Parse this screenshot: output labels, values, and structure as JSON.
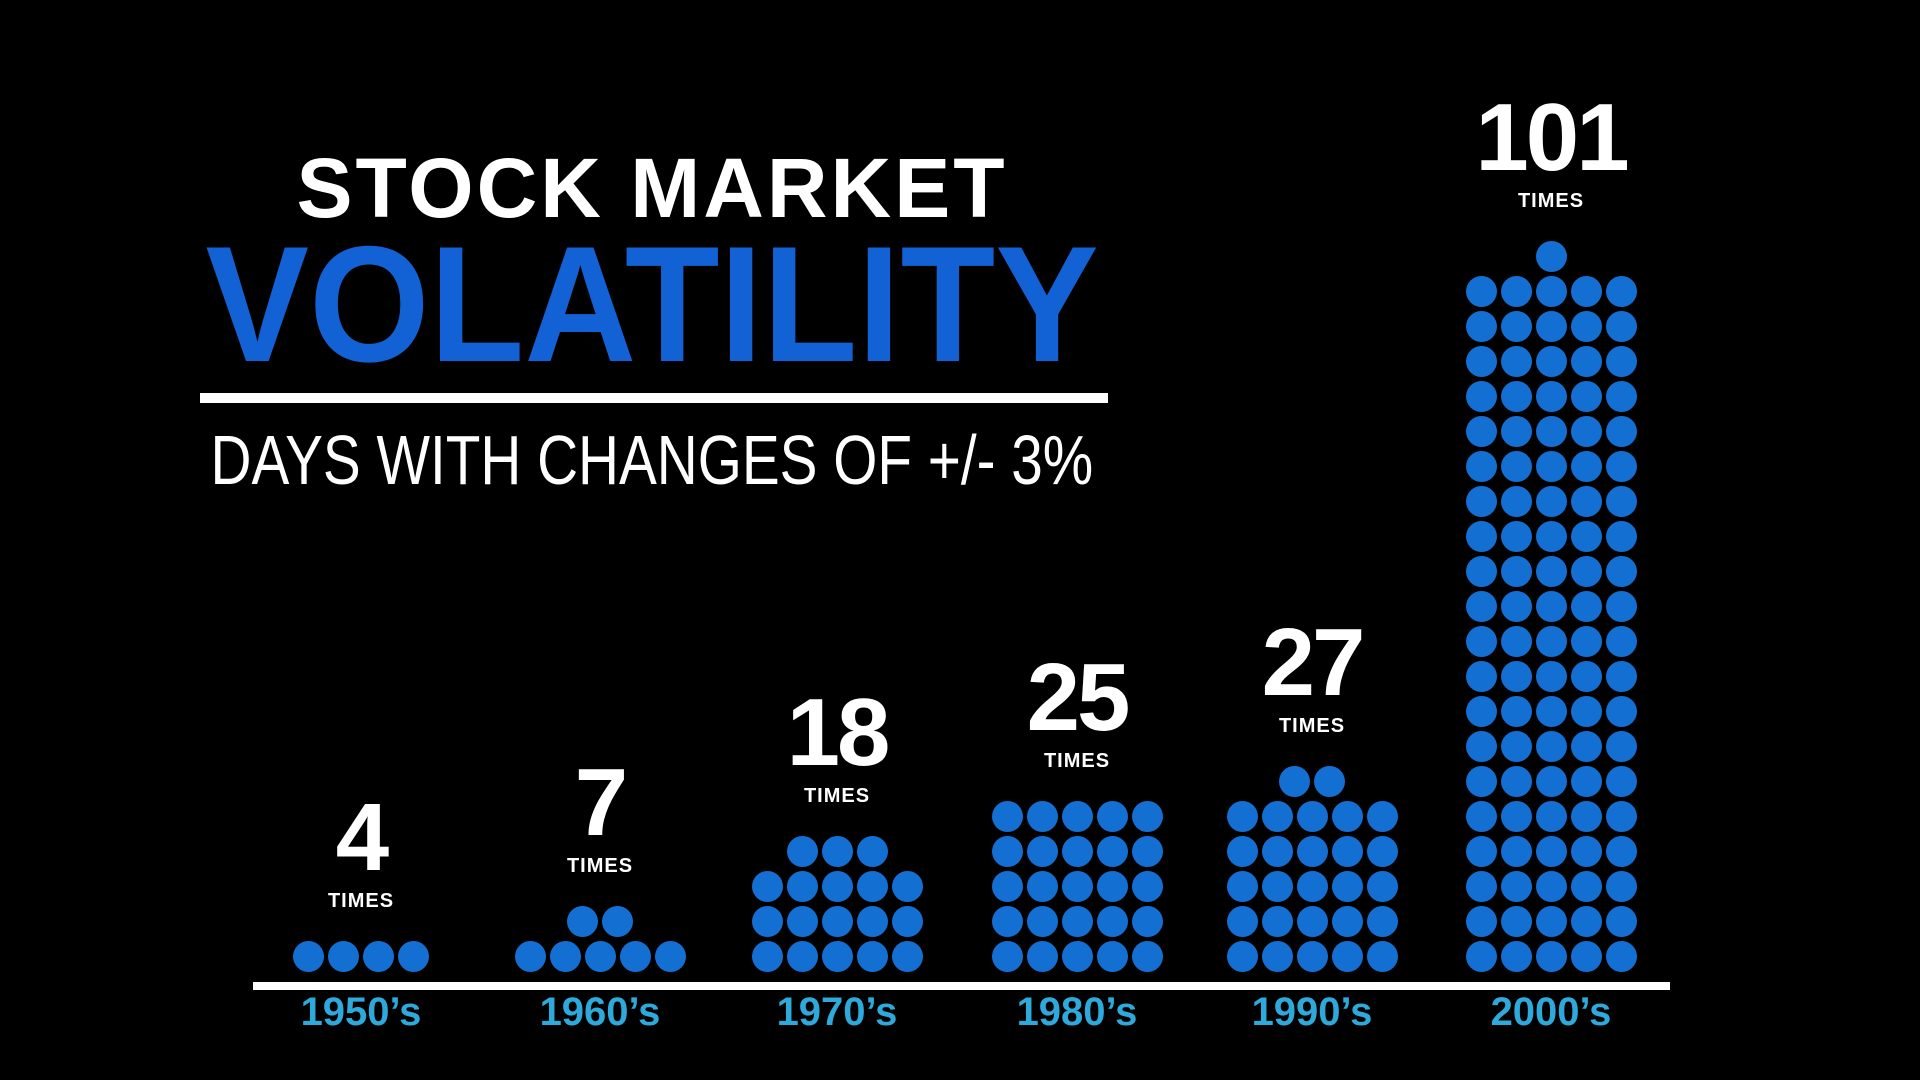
{
  "header": {
    "title_top": "STOCK MARKET",
    "title_main": "VOLATILITY",
    "subtitle": "DAYS WITH CHANGES OF +/- 3%"
  },
  "times_label": "TIMES",
  "colors": {
    "background": "#000000",
    "title_text": "#ffffff",
    "accent_blue": "#1262d6",
    "dot_blue": "#146fd2",
    "category_cyan": "#2ea9dc",
    "rule_white": "#ffffff"
  },
  "chart_data": {
    "type": "pictogram-bar",
    "title": "STOCK MARKET VOLATILITY",
    "subtitle": "DAYS WITH CHANGES OF +/- 3%",
    "categories": [
      "1950’s",
      "1960’s",
      "1970’s",
      "1980’s",
      "1990’s",
      "2000’s"
    ],
    "values": [
      4,
      7,
      18,
      25,
      27,
      101
    ],
    "unit_label": "TIMES",
    "dots_per_row": 5,
    "layout_hints": {
      "partial_row_position": "top-centered",
      "value_label_position": "above each dot stack",
      "baseline": "white rule under all stacks",
      "background": "black",
      "legend": "none",
      "grid": "off"
    }
  }
}
